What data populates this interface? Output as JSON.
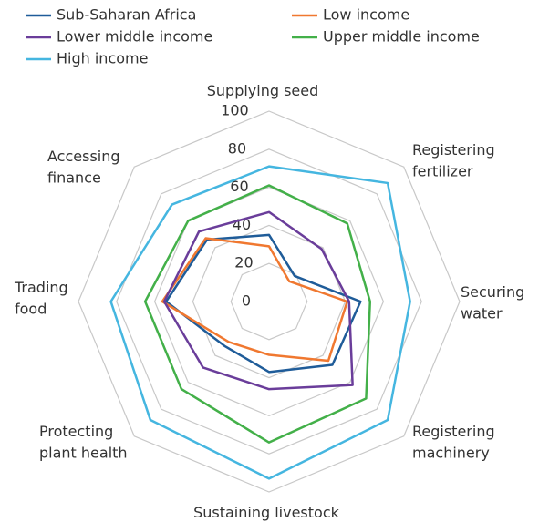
{
  "chart_data": {
    "type": "radar",
    "categories": [
      "Supplying seed",
      "Registering\nfertilizer",
      "Securing\nwater",
      "Registering\nmachinery",
      "Sustaining livestock",
      "Protecting\nplant health",
      "Trading\nfood",
      "Accessing\nfinance"
    ],
    "series": [
      {
        "name": "Sub-Saharan Africa",
        "color": "#1f5c99",
        "values": [
          35,
          19,
          48,
          47,
          37,
          33,
          54,
          46
        ]
      },
      {
        "name": "Low income",
        "color": "#f07830",
        "values": [
          29,
          15,
          41,
          44,
          28,
          30,
          56,
          47
        ]
      },
      {
        "name": "Lower middle income",
        "color": "#6a3d9a",
        "values": [
          47,
          39,
          42,
          62,
          46,
          49,
          55,
          52
        ]
      },
      {
        "name": "Upper middle income",
        "color": "#43b049",
        "values": [
          61,
          58,
          53,
          72,
          74,
          65,
          65,
          60
        ]
      },
      {
        "name": "High income",
        "color": "#45b6e0",
        "values": [
          71,
          88,
          74,
          88,
          93,
          88,
          83,
          72
        ]
      }
    ],
    "ylim": [
      0,
      100
    ],
    "yticks": [
      0,
      20,
      40,
      60,
      80,
      100
    ],
    "grid": true
  }
}
